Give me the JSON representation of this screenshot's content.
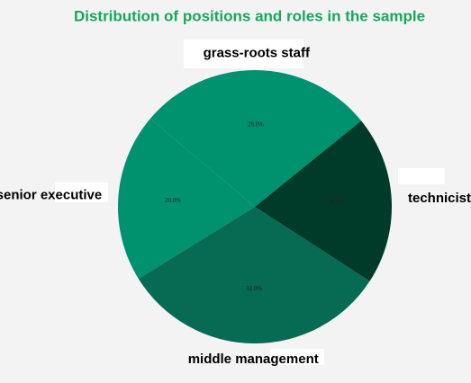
{
  "chart_data": {
    "type": "pie",
    "title": "Distribution of positions and roles in the sample",
    "categories": [
      "grass-roots staff",
      "senior executive",
      "middle management",
      "technicist"
    ],
    "values": [
      28,
      20,
      32,
      20
    ],
    "value_labels": [
      "28.0%",
      "20.0%",
      "32.0%",
      "20.0%"
    ],
    "colors": [
      "#00916e",
      "#00916e",
      "#076a52",
      "#003a28"
    ]
  }
}
